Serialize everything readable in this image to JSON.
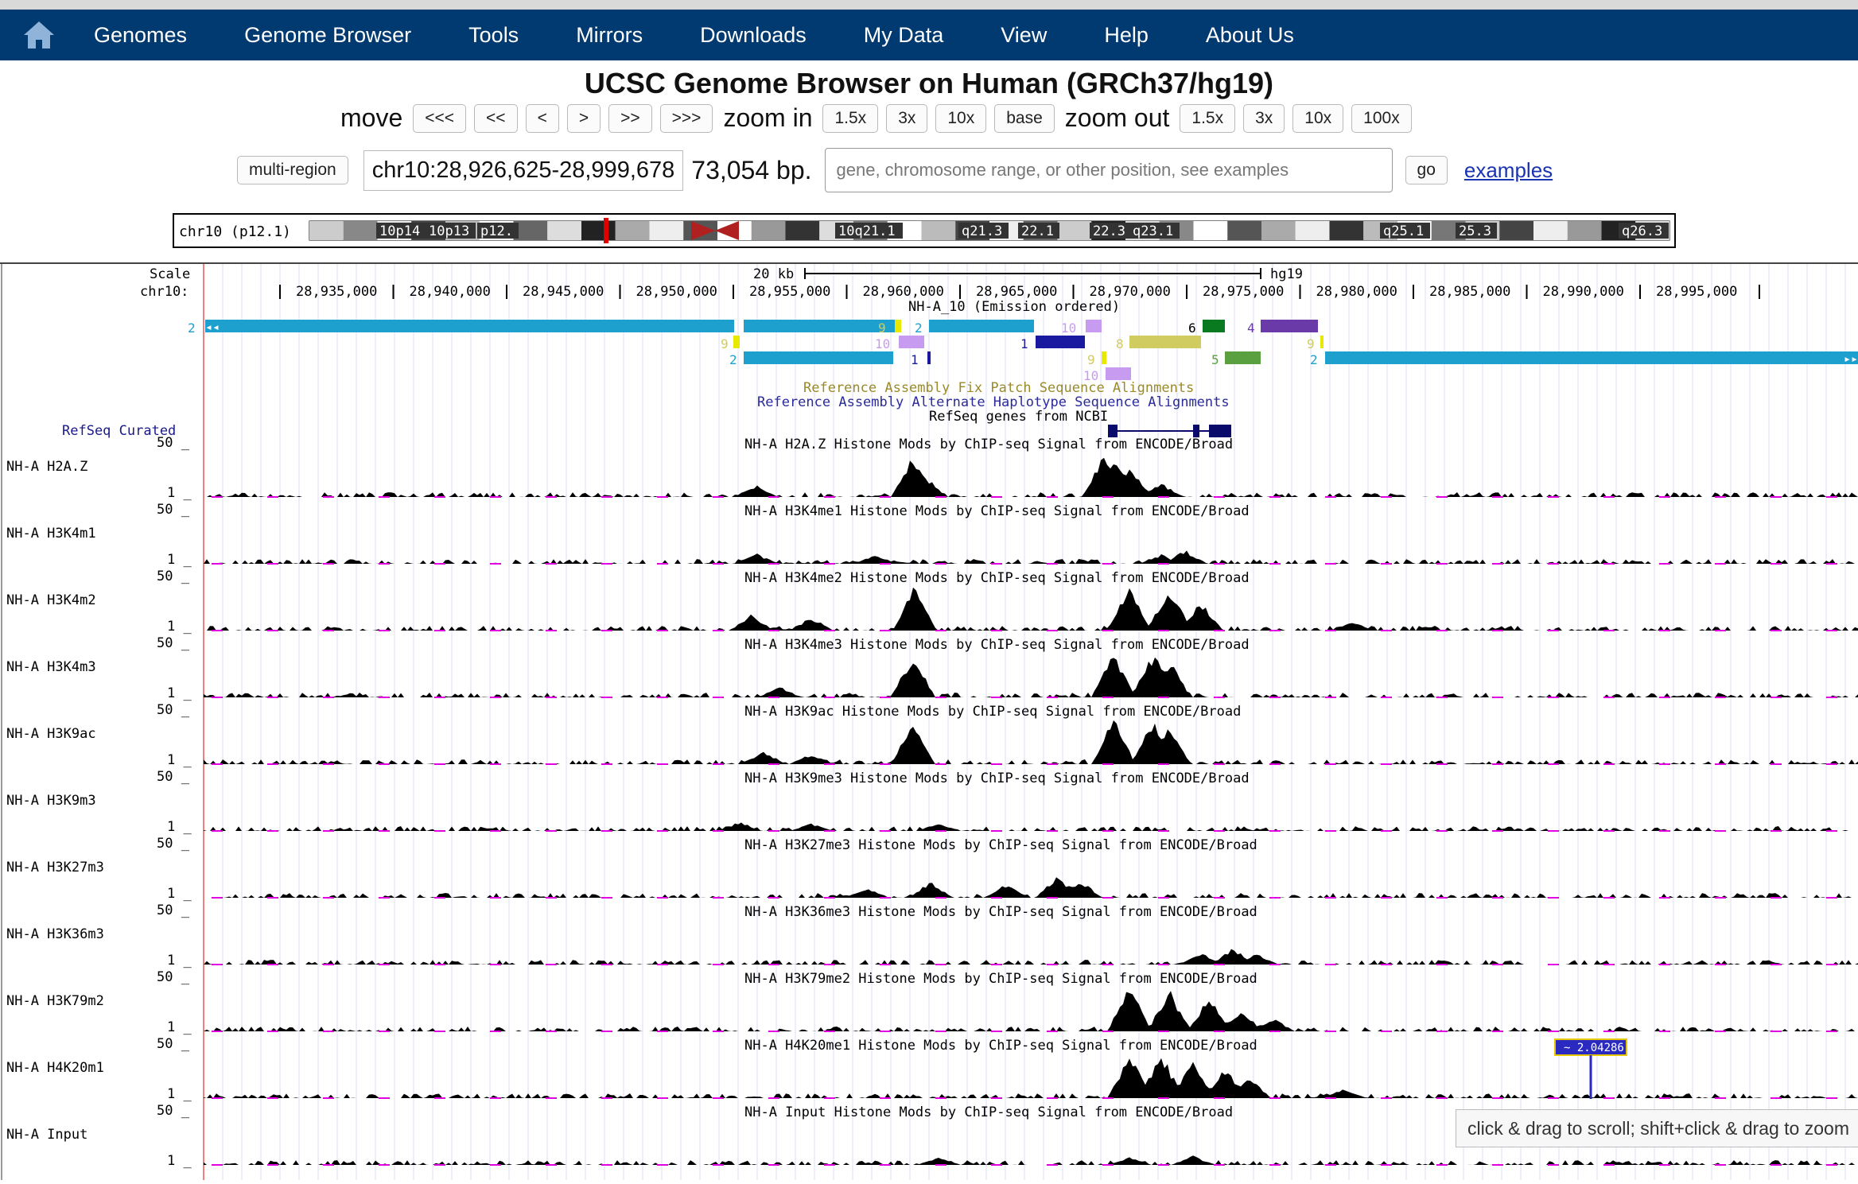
{
  "nav": {
    "home_icon": "home-icon",
    "items": [
      "Genomes",
      "Genome Browser",
      "Tools",
      "Mirrors",
      "Downloads",
      "My Data",
      "View",
      "Help",
      "About Us"
    ]
  },
  "title": "UCSC Genome Browser on Human (GRCh37/hg19)",
  "controls": {
    "move_label": "move",
    "move_buttons": [
      "<<<",
      "<<",
      "<",
      ">",
      ">>",
      ">>>"
    ],
    "zoom_in_label": "zoom in",
    "zoom_in_buttons": [
      "1.5x",
      "3x",
      "10x",
      "base"
    ],
    "zoom_out_label": "zoom out",
    "zoom_out_buttons": [
      "1.5x",
      "3x",
      "10x",
      "100x"
    ]
  },
  "position_bar": {
    "multi_region": "multi-region",
    "position": "chr10:28,926,625-28,999,678",
    "size": "73,054 bp.",
    "search_placeholder": "gene, chromosome range, or other position, see examples",
    "go": "go",
    "examples": "examples"
  },
  "ideogram": {
    "label": "chr10 (p12.1)",
    "bands": [
      "10p14",
      "10p13",
      "p12.",
      "10q21.1",
      "q21.3",
      "22.1",
      "22.3",
      "q23.1",
      "q25.1",
      "25.3",
      "q26.3"
    ]
  },
  "ruler": {
    "scale_label": "Scale",
    "chrom_label": "chr10:",
    "scale_text": "20 kb",
    "assembly": "hg19",
    "positions": [
      "28,935,000",
      "28,940,000",
      "28,945,000",
      "28,950,000",
      "28,955,000",
      "28,960,000",
      "28,965,000",
      "28,970,000",
      "28,975,000",
      "28,980,000",
      "28,985,000",
      "28,990,000",
      "28,995,000"
    ]
  },
  "state_track": {
    "title": "NH-A_10 (Emission ordered)",
    "numbers": [
      "2",
      "9",
      "2",
      "10",
      "6",
      "4",
      "9",
      "10",
      "1",
      "8",
      "9",
      "2",
      "1",
      "9",
      "5",
      "2",
      "10"
    ]
  },
  "fix_patch": "Reference Assembly Fix Patch Sequence Alignments",
  "alt_haplo": "Reference Assembly Alternate Haplotype Sequence Alignments",
  "refseq": {
    "title": "RefSeq genes from NCBI",
    "side_label": "RefSeq Curated"
  },
  "scale_max": "50 _",
  "scale_min": "1 _",
  "signal_tracks": [
    {
      "name": "NH-A H2A.Z",
      "title": "NH-A H2A.Z Histone Mods by ChIP-seq Signal from ENCODE/Broad"
    },
    {
      "name": "NH-A H3K4m1",
      "title": "NH-A H3K4me1 Histone Mods by ChIP-seq Signal from ENCODE/Broad"
    },
    {
      "name": "NH-A H3K4m2",
      "title": "NH-A H3K4me2 Histone Mods by ChIP-seq Signal from ENCODE/Broad"
    },
    {
      "name": "NH-A H3K4m3",
      "title": "NH-A H3K4me3 Histone Mods by ChIP-seq Signal from ENCODE/Broad"
    },
    {
      "name": "NH-A H3K9ac",
      "title": "NH-A H3K9ac Histone Mods by ChIP-seq Signal from ENCODE/Broad"
    },
    {
      "name": "NH-A H3K9m3",
      "title": "NH-A H3K9me3 Histone Mods by ChIP-seq Signal from ENCODE/Broad"
    },
    {
      "name": "NH-A H3K27m3",
      "title": "NH-A H3K27me3 Histone Mods by ChIP-seq Signal from ENCODE/Broad"
    },
    {
      "name": "NH-A H3K36m3",
      "title": "NH-A H3K36me3 Histone Mods by ChIP-seq Signal from ENCODE/Broad"
    },
    {
      "name": "NH-A H3K79m2",
      "title": "NH-A H3K79me2 Histone Mods by ChIP-seq Signal from ENCODE/Broad"
    },
    {
      "name": "NH-A H4K20m1",
      "title": "NH-A H4K20me1 Histone Mods by ChIP-seq Signal from ENCODE/Broad"
    },
    {
      "name": "NH-A Input",
      "title": "NH-A Input Histone Mods by ChIP-seq Signal from ENCODE/Broad"
    }
  ],
  "hover_value": "~ 2.04286",
  "tooltip": "click & drag to scroll; shift+click & drag to zoom",
  "colors": {
    "nav_bg": "#003a70",
    "state_blue": "#1ea0cf",
    "lavender": "#c79cf0",
    "yellow": "#e8e800",
    "olive": "#d0cc60",
    "green": "#5aa040",
    "dkgreen": "#0a7a20",
    "purple": "#6a3aa8",
    "navy": "#1a1aa0",
    "magenta": "#e000e0"
  }
}
